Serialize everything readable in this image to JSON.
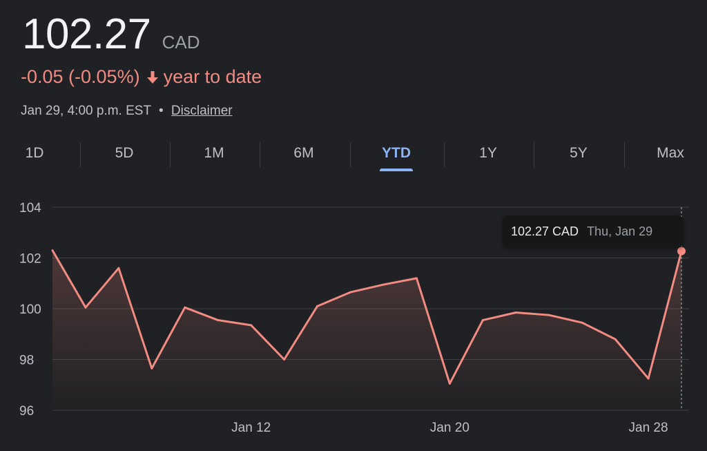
{
  "quote": {
    "price": "102.27",
    "currency": "CAD",
    "change": "-0.05 (-0.05%)",
    "period": "year to date",
    "timestamp": "Jan 29, 4:00 p.m. EST",
    "separator": "•",
    "disclaimer": "Disclaimer"
  },
  "colors": {
    "line": "#f28b82",
    "accent": "#8ab4f8",
    "background": "#202124"
  },
  "tabs": [
    {
      "label": "1D",
      "active": false
    },
    {
      "label": "5D",
      "active": false
    },
    {
      "label": "1M",
      "active": false
    },
    {
      "label": "6M",
      "active": false
    },
    {
      "label": "YTD",
      "active": true
    },
    {
      "label": "1Y",
      "active": false
    },
    {
      "label": "5Y",
      "active": false
    },
    {
      "label": "Max",
      "active": false
    }
  ],
  "tooltip": {
    "value": "102.27 CAD",
    "date": "Thu, Jan 29"
  },
  "chart_data": {
    "type": "area",
    "x": [
      "Jan 2",
      "Jan 5",
      "Jan 6",
      "Jan 7",
      "Jan 8",
      "Jan 9",
      "Jan 12",
      "Jan 13",
      "Jan 14",
      "Jan 15",
      "Jan 16",
      "Jan 19",
      "Jan 20",
      "Jan 21",
      "Jan 22",
      "Jan 23",
      "Jan 26",
      "Jan 27",
      "Jan 28",
      "Jan 29"
    ],
    "series": [
      {
        "values": [
          102.3,
          100.05,
          101.6,
          97.65,
          100.05,
          99.55,
          99.35,
          98.0,
          100.1,
          100.65,
          100.95,
          101.2,
          97.05,
          99.55,
          99.85,
          99.75,
          99.45,
          98.8,
          97.25,
          102.27
        ]
      }
    ],
    "ylim": [
      96,
      104
    ],
    "yticks": [
      "96",
      "98",
      "100",
      "102",
      "104"
    ],
    "xticks": [
      {
        "label": "Jan 12",
        "index": 6
      },
      {
        "label": "Jan 20",
        "index": 12
      },
      {
        "label": "Jan 28",
        "index": 18
      }
    ],
    "grid": true,
    "xlabel": "",
    "ylabel": ""
  }
}
